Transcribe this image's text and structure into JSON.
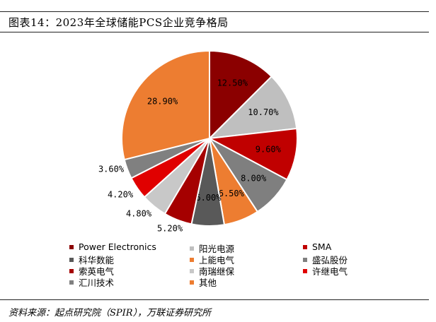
{
  "header": {
    "title": "图表14：2023年全球储能PCS企业竞争格局"
  },
  "footer": {
    "source": "资料来源：起点研究院（SPIR），万联证券研究所"
  },
  "chart_data": {
    "type": "pie",
    "title": "图表14：2023年全球储能PCS企业竞争格局",
    "slices": [
      {
        "name": "Power Electronics",
        "value": 12.5,
        "label": "12.50%",
        "color": "#8B0000"
      },
      {
        "name": "阳光电源",
        "value": 10.7,
        "label": "10.70%",
        "color": "#BFBFBF"
      },
      {
        "name": "SMA",
        "value": 9.6,
        "label": "9.60%",
        "color": "#C00000"
      },
      {
        "name": "盛弘股份",
        "value": 8.0,
        "label": "8.00%",
        "color": "#7F7F7F"
      },
      {
        "name": "上能电气",
        "value": 6.5,
        "label": "6.50%",
        "color": "#ED7D31"
      },
      {
        "name": "科华数能",
        "value": 6.0,
        "label": "6.00%",
        "color": "#595959"
      },
      {
        "name": "索英电气",
        "value": 5.2,
        "label": "5.20%",
        "color": "#A50000"
      },
      {
        "name": "南瑞继保",
        "value": 4.8,
        "label": "4.80%",
        "color": "#C8C8C8"
      },
      {
        "name": "许继电气",
        "value": 4.2,
        "label": "4.20%",
        "color": "#E00000"
      },
      {
        "name": "汇川技术",
        "value": 3.6,
        "label": "3.60%",
        "color": "#808080"
      },
      {
        "name": "其他",
        "value": 28.9,
        "label": "28.90%",
        "color": "#ED7D31"
      }
    ],
    "legend": {
      "placement": "bottom",
      "order": [
        "Power Electronics",
        "阳光电源",
        "SMA",
        "科华数能",
        "上能电气",
        "盛弘股份",
        "索英电气",
        "南瑞继保",
        "许继电气",
        "汇川技术",
        "其他"
      ]
    }
  }
}
